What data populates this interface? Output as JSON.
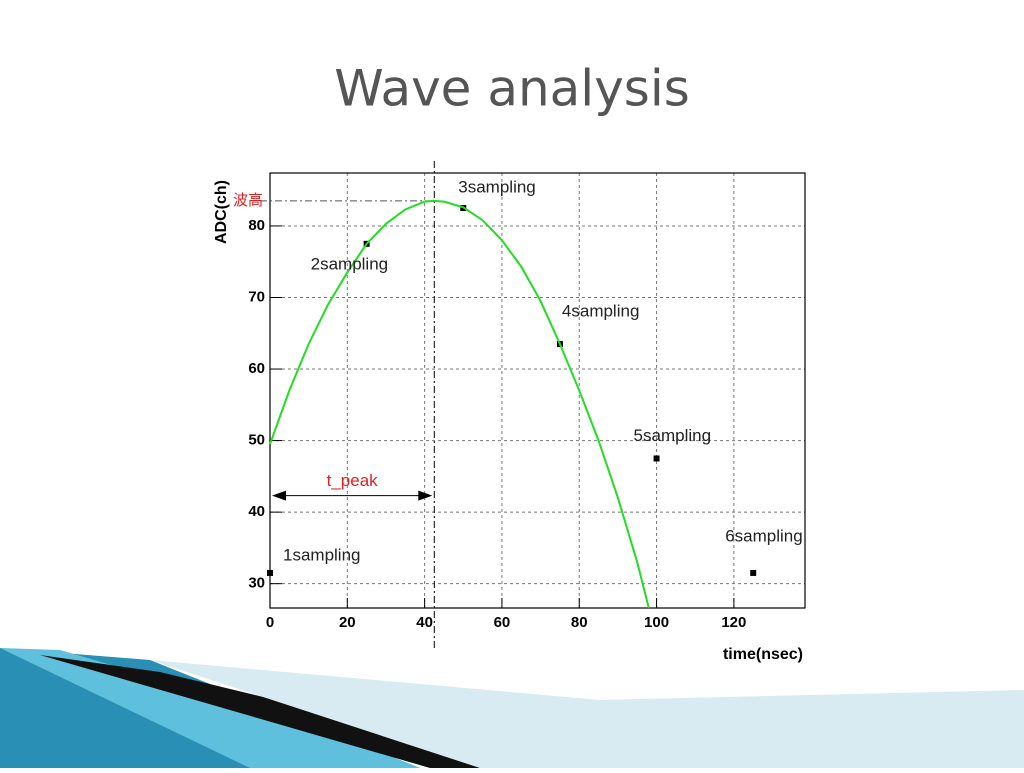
{
  "title": "Wave analysis",
  "chart_data": {
    "type": "scatter",
    "x_label": "time(nsec)",
    "y_label": "ADC(ch)",
    "xlim": [
      0,
      138.4
    ],
    "ylim": [
      26.6,
      87.4
    ],
    "xticks": [
      0,
      20,
      40,
      60,
      80,
      100,
      120
    ],
    "yticks": [
      30,
      40,
      50,
      60,
      70,
      80
    ],
    "grid": true,
    "series": [
      {
        "kind": "scatter",
        "color": "#000000",
        "x": [
          0,
          25,
          50,
          75,
          100,
          125
        ],
        "values": [
          31.5,
          77.5,
          82.5,
          63.5,
          47.5,
          31.5
        ]
      },
      {
        "kind": "line",
        "color": "#22dd22",
        "x": [
          0,
          5,
          10,
          15,
          20,
          25,
          30,
          35,
          40,
          42.5,
          45,
          50,
          55,
          60,
          65,
          70,
          75,
          80,
          85,
          90,
          95,
          98
        ],
        "values": [
          49.5,
          57,
          63.5,
          69,
          73.5,
          77.5,
          80.3,
          82.3,
          83.4,
          83.5,
          83.4,
          82.6,
          80.8,
          78,
          74.3,
          69.5,
          63.5,
          57,
          50,
          42,
          33,
          26.6
        ]
      }
    ],
    "annotations": [
      "1sampling",
      "2sampling",
      "3sampling",
      "4sampling",
      "5sampling",
      "6sampling"
    ],
    "peak": {
      "x": 42.5,
      "y": 83.5,
      "label": "波高"
    },
    "t_peak": {
      "y": 42.3,
      "label": "t_peak"
    }
  }
}
